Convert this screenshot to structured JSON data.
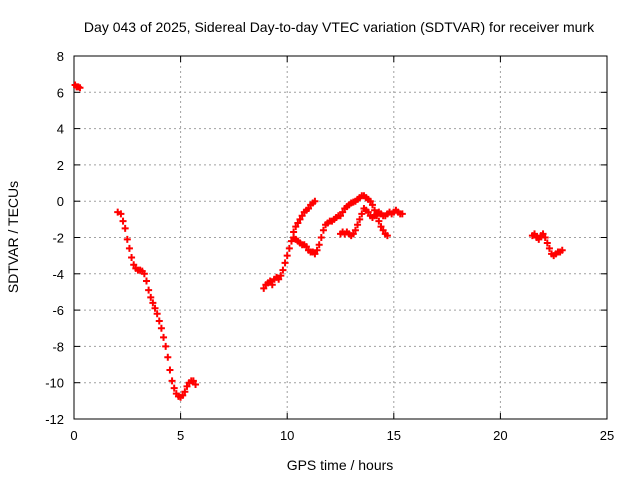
{
  "chart_data": {
    "type": "scatter",
    "title": "Day 043 of 2025, Sidereal Day-to-day VTEC variation (SDTVAR) for receiver murk",
    "xlabel": "GPS time / hours",
    "ylabel": "SDTVAR / TECUs",
    "xlim": [
      0,
      25
    ],
    "ylim": [
      -12,
      8
    ],
    "xticks": [
      0,
      5,
      10,
      15,
      20,
      25
    ],
    "yticks": [
      -12,
      -10,
      -8,
      -6,
      -4,
      -2,
      0,
      2,
      4,
      6,
      8
    ],
    "xtick_labels": [
      "0",
      "5",
      "10",
      "15",
      "20",
      "25"
    ],
    "ytick_labels": [
      "-12",
      "-10",
      "-8",
      "-6",
      "-4",
      "-2",
      "0",
      "2",
      "4",
      "6",
      "8"
    ],
    "grid": true,
    "marker": "plus",
    "color": "#ff0000",
    "segments": [
      [
        [
          0.05,
          6.4
        ],
        [
          0.12,
          6.3
        ],
        [
          0.2,
          6.3
        ],
        [
          0.28,
          6.25
        ]
      ],
      [
        [
          2.05,
          -0.6
        ],
        [
          2.2,
          -0.7
        ],
        [
          2.3,
          -1.1
        ],
        [
          2.4,
          -1.5
        ],
        [
          2.5,
          -2.1
        ],
        [
          2.6,
          -2.6
        ],
        [
          2.7,
          -3.1
        ],
        [
          2.8,
          -3.5
        ],
        [
          2.9,
          -3.7
        ],
        [
          3.0,
          -3.8
        ],
        [
          3.1,
          -3.8
        ],
        [
          3.2,
          -3.85
        ],
        [
          3.3,
          -4.0
        ],
        [
          3.4,
          -4.4
        ],
        [
          3.5,
          -4.9
        ],
        [
          3.6,
          -5.3
        ],
        [
          3.7,
          -5.6
        ],
        [
          3.8,
          -5.9
        ],
        [
          3.9,
          -6.2
        ],
        [
          4.0,
          -6.6
        ],
        [
          4.1,
          -7.0
        ],
        [
          4.2,
          -7.5
        ],
        [
          4.3,
          -8.0
        ],
        [
          4.4,
          -8.6
        ],
        [
          4.5,
          -9.3
        ],
        [
          4.6,
          -9.9
        ],
        [
          4.7,
          -10.3
        ],
        [
          4.8,
          -10.6
        ],
        [
          4.9,
          -10.75
        ],
        [
          5.0,
          -10.8
        ],
        [
          5.1,
          -10.7
        ],
        [
          5.2,
          -10.5
        ],
        [
          5.3,
          -10.2
        ],
        [
          5.4,
          -10.0
        ],
        [
          5.5,
          -9.9
        ],
        [
          5.6,
          -9.9
        ],
        [
          5.7,
          -10.1
        ]
      ],
      [
        [
          8.9,
          -4.8
        ],
        [
          9.0,
          -4.6
        ],
        [
          9.1,
          -4.5
        ],
        [
          9.2,
          -4.4
        ],
        [
          9.3,
          -4.6
        ],
        [
          9.4,
          -4.3
        ],
        [
          9.5,
          -4.2
        ],
        [
          9.6,
          -4.3
        ],
        [
          9.7,
          -4.1
        ],
        [
          9.8,
          -3.8
        ],
        [
          9.9,
          -3.4
        ],
        [
          10.0,
          -3.0
        ],
        [
          10.1,
          -2.6
        ],
        [
          10.2,
          -2.2
        ],
        [
          10.3,
          -1.7
        ],
        [
          10.4,
          -1.4
        ],
        [
          10.5,
          -1.2
        ],
        [
          10.6,
          -1.0
        ],
        [
          10.7,
          -0.8
        ],
        [
          10.8,
          -0.6
        ],
        [
          10.9,
          -0.5
        ],
        [
          11.0,
          -0.4
        ],
        [
          11.1,
          -0.2
        ],
        [
          11.2,
          -0.1
        ],
        [
          11.3,
          0.0
        ]
      ],
      [
        [
          10.3,
          -2.0
        ],
        [
          10.4,
          -2.1
        ],
        [
          10.5,
          -2.2
        ],
        [
          10.6,
          -2.3
        ],
        [
          10.7,
          -2.4
        ],
        [
          10.8,
          -2.4
        ],
        [
          10.9,
          -2.5
        ],
        [
          11.0,
          -2.7
        ],
        [
          11.1,
          -2.8
        ],
        [
          11.2,
          -2.8
        ],
        [
          11.3,
          -2.9
        ],
        [
          11.4,
          -2.7
        ],
        [
          11.5,
          -2.4
        ],
        [
          11.6,
          -2.0
        ],
        [
          11.7,
          -1.6
        ],
        [
          11.8,
          -1.3
        ],
        [
          11.9,
          -1.2
        ],
        [
          12.0,
          -1.1
        ],
        [
          12.1,
          -1.1
        ],
        [
          12.2,
          -1.0
        ],
        [
          12.3,
          -0.9
        ],
        [
          12.4,
          -0.8
        ],
        [
          12.5,
          -0.8
        ],
        [
          12.6,
          -0.6
        ],
        [
          12.7,
          -0.4
        ],
        [
          12.8,
          -0.3
        ],
        [
          12.9,
          -0.2
        ],
        [
          13.0,
          -0.1
        ],
        [
          13.1,
          -0.05
        ],
        [
          13.2,
          0.0
        ],
        [
          13.3,
          0.1
        ],
        [
          13.4,
          0.2
        ],
        [
          13.5,
          0.3
        ],
        [
          13.6,
          0.3
        ],
        [
          13.7,
          0.2
        ],
        [
          13.8,
          0.1
        ],
        [
          13.9,
          0.0
        ],
        [
          14.0,
          -0.2
        ],
        [
          14.1,
          -0.5
        ],
        [
          14.2,
          -0.8
        ],
        [
          14.3,
          -1.1
        ],
        [
          14.4,
          -1.4
        ],
        [
          14.5,
          -1.6
        ],
        [
          14.6,
          -1.8
        ],
        [
          14.7,
          -1.9
        ]
      ],
      [
        [
          12.5,
          -1.8
        ],
        [
          12.6,
          -1.7
        ],
        [
          12.7,
          -1.8
        ],
        [
          12.8,
          -1.7
        ],
        [
          12.9,
          -1.8
        ],
        [
          13.0,
          -1.9
        ],
        [
          13.1,
          -1.8
        ],
        [
          13.2,
          -1.6
        ],
        [
          13.3,
          -1.3
        ],
        [
          13.4,
          -1.0
        ],
        [
          13.5,
          -0.7
        ],
        [
          13.6,
          -0.4
        ],
        [
          13.7,
          -0.5
        ],
        [
          13.8,
          -0.6
        ],
        [
          13.9,
          -0.8
        ],
        [
          14.0,
          -0.9
        ],
        [
          14.1,
          -0.8
        ],
        [
          14.2,
          -0.7
        ],
        [
          14.3,
          -0.6
        ],
        [
          14.4,
          -0.7
        ],
        [
          14.5,
          -0.8
        ],
        [
          14.6,
          -0.8
        ],
        [
          14.7,
          -0.7
        ],
        [
          14.8,
          -0.6
        ],
        [
          14.9,
          -0.7
        ],
        [
          15.0,
          -0.6
        ],
        [
          15.1,
          -0.5
        ],
        [
          15.2,
          -0.6
        ],
        [
          15.3,
          -0.7
        ],
        [
          15.4,
          -0.7
        ]
      ],
      [
        [
          21.5,
          -1.9
        ],
        [
          21.6,
          -1.8
        ],
        [
          21.7,
          -2.0
        ],
        [
          21.8,
          -2.1
        ],
        [
          21.9,
          -1.9
        ],
        [
          22.0,
          -1.8
        ],
        [
          22.1,
          -2.0
        ],
        [
          22.2,
          -2.3
        ],
        [
          22.3,
          -2.6
        ],
        [
          22.4,
          -2.9
        ],
        [
          22.5,
          -3.0
        ],
        [
          22.6,
          -2.9
        ],
        [
          22.7,
          -2.8
        ],
        [
          22.8,
          -2.8
        ],
        [
          22.9,
          -2.7
        ]
      ]
    ]
  }
}
